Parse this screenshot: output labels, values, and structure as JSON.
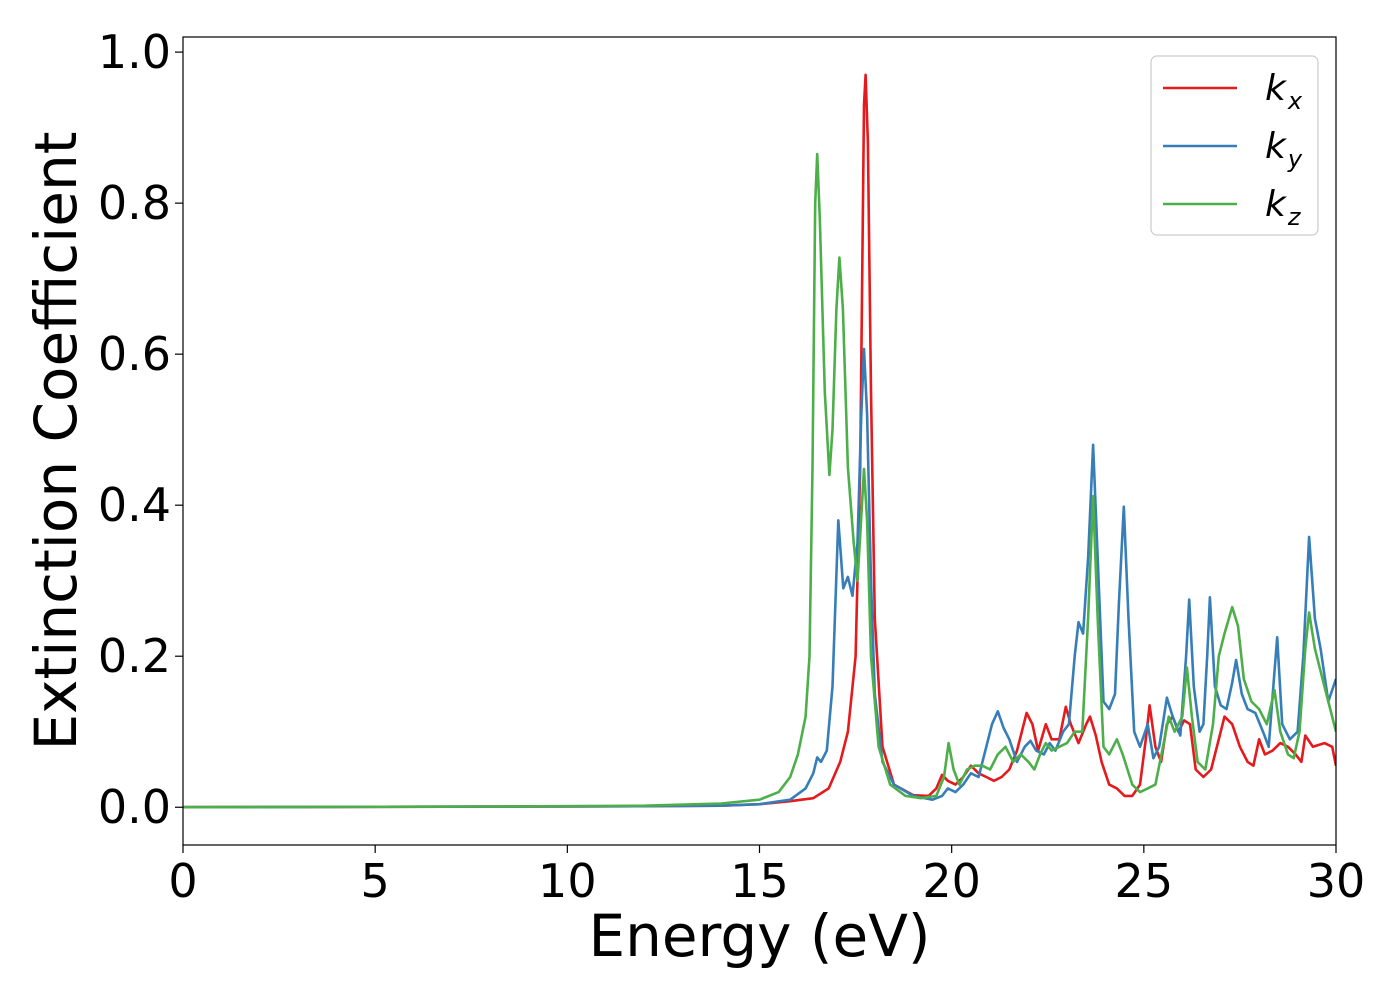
{
  "chart_data": {
    "type": "line",
    "title": "",
    "xlabel": "Energy (eV)",
    "ylabel": "Extinction Coefficient",
    "xlim": [
      0,
      30
    ],
    "ylim": [
      -0.05,
      1.02
    ],
    "xticks": [
      0,
      5,
      10,
      15,
      20,
      25,
      30
    ],
    "xtick_labels": [
      "0",
      "5",
      "10",
      "15",
      "20",
      "25",
      "30"
    ],
    "yticks": [
      0.0,
      0.2,
      0.4,
      0.6,
      0.8,
      1.0
    ],
    "ytick_labels": [
      "0.0",
      "0.2",
      "0.4",
      "0.6",
      "0.8",
      "1.0"
    ],
    "grid": false,
    "legend_position": "top-right",
    "series": [
      {
        "name": "k_x",
        "legend_base": "k",
        "legend_sub": "x",
        "color": "#e41a1c",
        "points": [
          [
            0,
            0
          ],
          [
            10,
            0.001
          ],
          [
            14,
            0.002
          ],
          [
            15,
            0.004
          ],
          [
            15.8,
            0.008
          ],
          [
            16.4,
            0.012
          ],
          [
            16.8,
            0.025
          ],
          [
            17.1,
            0.06
          ],
          [
            17.3,
            0.1
          ],
          [
            17.5,
            0.2
          ],
          [
            17.62,
            0.45
          ],
          [
            17.72,
            0.93
          ],
          [
            17.76,
            0.97
          ],
          [
            17.82,
            0.88
          ],
          [
            17.9,
            0.55
          ],
          [
            18.0,
            0.25
          ],
          [
            18.2,
            0.08
          ],
          [
            18.5,
            0.03
          ],
          [
            19.0,
            0.016
          ],
          [
            19.4,
            0.015
          ],
          [
            19.6,
            0.025
          ],
          [
            19.75,
            0.043
          ],
          [
            19.9,
            0.035
          ],
          [
            20.1,
            0.03
          ],
          [
            20.3,
            0.04
          ],
          [
            20.5,
            0.055
          ],
          [
            20.7,
            0.045
          ],
          [
            20.9,
            0.04
          ],
          [
            21.1,
            0.035
          ],
          [
            21.3,
            0.04
          ],
          [
            21.5,
            0.05
          ],
          [
            21.7,
            0.075
          ],
          [
            21.95,
            0.125
          ],
          [
            22.1,
            0.11
          ],
          [
            22.25,
            0.075
          ],
          [
            22.45,
            0.11
          ],
          [
            22.6,
            0.09
          ],
          [
            22.8,
            0.09
          ],
          [
            22.97,
            0.133
          ],
          [
            23.1,
            0.11
          ],
          [
            23.3,
            0.085
          ],
          [
            23.5,
            0.11
          ],
          [
            23.6,
            0.12
          ],
          [
            23.75,
            0.095
          ],
          [
            23.9,
            0.06
          ],
          [
            24.1,
            0.03
          ],
          [
            24.3,
            0.025
          ],
          [
            24.5,
            0.015
          ],
          [
            24.7,
            0.015
          ],
          [
            24.9,
            0.03
          ],
          [
            25.05,
            0.09
          ],
          [
            25.15,
            0.135
          ],
          [
            25.3,
            0.08
          ],
          [
            25.45,
            0.06
          ],
          [
            25.6,
            0.11
          ],
          [
            25.75,
            0.12
          ],
          [
            25.9,
            0.1
          ],
          [
            26.05,
            0.115
          ],
          [
            26.2,
            0.11
          ],
          [
            26.35,
            0.05
          ],
          [
            26.55,
            0.04
          ],
          [
            26.75,
            0.05
          ],
          [
            26.95,
            0.09
          ],
          [
            27.1,
            0.12
          ],
          [
            27.3,
            0.11
          ],
          [
            27.5,
            0.08
          ],
          [
            27.7,
            0.06
          ],
          [
            27.85,
            0.055
          ],
          [
            28.0,
            0.09
          ],
          [
            28.15,
            0.07
          ],
          [
            28.35,
            0.075
          ],
          [
            28.55,
            0.085
          ],
          [
            28.75,
            0.08
          ],
          [
            28.95,
            0.07
          ],
          [
            29.1,
            0.06
          ],
          [
            29.2,
            0.095
          ],
          [
            29.4,
            0.08
          ],
          [
            29.7,
            0.085
          ],
          [
            29.9,
            0.08
          ],
          [
            30.0,
            0.055
          ]
        ]
      },
      {
        "name": "k_y",
        "legend_base": "k",
        "legend_sub": "y",
        "color": "#377eb8",
        "points": [
          [
            0,
            0
          ],
          [
            10,
            0.001
          ],
          [
            14,
            0.002
          ],
          [
            15,
            0.004
          ],
          [
            15.8,
            0.01
          ],
          [
            16.2,
            0.025
          ],
          [
            16.4,
            0.045
          ],
          [
            16.5,
            0.066
          ],
          [
            16.6,
            0.06
          ],
          [
            16.75,
            0.075
          ],
          [
            16.9,
            0.16
          ],
          [
            17.05,
            0.38
          ],
          [
            17.18,
            0.29
          ],
          [
            17.3,
            0.305
          ],
          [
            17.42,
            0.28
          ],
          [
            17.55,
            0.35
          ],
          [
            17.65,
            0.52
          ],
          [
            17.72,
            0.607
          ],
          [
            17.8,
            0.52
          ],
          [
            17.9,
            0.3
          ],
          [
            18.0,
            0.15
          ],
          [
            18.2,
            0.06
          ],
          [
            18.5,
            0.03
          ],
          [
            19.0,
            0.015
          ],
          [
            19.5,
            0.01
          ],
          [
            19.75,
            0.015
          ],
          [
            19.9,
            0.025
          ],
          [
            20.1,
            0.02
          ],
          [
            20.3,
            0.03
          ],
          [
            20.5,
            0.045
          ],
          [
            20.7,
            0.04
          ],
          [
            20.9,
            0.08
          ],
          [
            21.05,
            0.11
          ],
          [
            21.2,
            0.127
          ],
          [
            21.35,
            0.105
          ],
          [
            21.5,
            0.09
          ],
          [
            21.7,
            0.06
          ],
          [
            21.9,
            0.08
          ],
          [
            22.05,
            0.088
          ],
          [
            22.2,
            0.075
          ],
          [
            22.4,
            0.07
          ],
          [
            22.55,
            0.085
          ],
          [
            22.7,
            0.075
          ],
          [
            22.9,
            0.1
          ],
          [
            23.05,
            0.11
          ],
          [
            23.2,
            0.2
          ],
          [
            23.3,
            0.245
          ],
          [
            23.42,
            0.23
          ],
          [
            23.55,
            0.33
          ],
          [
            23.68,
            0.48
          ],
          [
            23.8,
            0.33
          ],
          [
            23.95,
            0.14
          ],
          [
            24.1,
            0.13
          ],
          [
            24.25,
            0.15
          ],
          [
            24.35,
            0.27
          ],
          [
            24.48,
            0.398
          ],
          [
            24.6,
            0.25
          ],
          [
            24.75,
            0.1
          ],
          [
            24.9,
            0.08
          ],
          [
            25.1,
            0.11
          ],
          [
            25.25,
            0.065
          ],
          [
            25.4,
            0.08
          ],
          [
            25.6,
            0.145
          ],
          [
            25.75,
            0.12
          ],
          [
            25.95,
            0.095
          ],
          [
            26.1,
            0.2
          ],
          [
            26.18,
            0.275
          ],
          [
            26.3,
            0.16
          ],
          [
            26.45,
            0.1
          ],
          [
            26.55,
            0.11
          ],
          [
            26.65,
            0.2
          ],
          [
            26.72,
            0.278
          ],
          [
            26.85,
            0.16
          ],
          [
            27.0,
            0.135
          ],
          [
            27.15,
            0.13
          ],
          [
            27.3,
            0.165
          ],
          [
            27.4,
            0.195
          ],
          [
            27.55,
            0.15
          ],
          [
            27.7,
            0.13
          ],
          [
            27.9,
            0.125
          ],
          [
            28.1,
            0.1
          ],
          [
            28.25,
            0.08
          ],
          [
            28.4,
            0.18
          ],
          [
            28.47,
            0.225
          ],
          [
            28.6,
            0.11
          ],
          [
            28.8,
            0.09
          ],
          [
            29.0,
            0.1
          ],
          [
            29.15,
            0.2
          ],
          [
            29.3,
            0.358
          ],
          [
            29.45,
            0.25
          ],
          [
            29.6,
            0.21
          ],
          [
            29.8,
            0.14
          ],
          [
            30.0,
            0.17
          ]
        ]
      },
      {
        "name": "k_z",
        "legend_base": "k",
        "legend_sub": "z",
        "color": "#4daf4a",
        "points": [
          [
            0,
            0
          ],
          [
            8,
            0.001
          ],
          [
            12,
            0.002
          ],
          [
            14,
            0.005
          ],
          [
            15,
            0.01
          ],
          [
            15.5,
            0.02
          ],
          [
            15.8,
            0.04
          ],
          [
            16.0,
            0.07
          ],
          [
            16.2,
            0.12
          ],
          [
            16.3,
            0.2
          ],
          [
            16.38,
            0.45
          ],
          [
            16.45,
            0.8
          ],
          [
            16.5,
            0.865
          ],
          [
            16.57,
            0.78
          ],
          [
            16.7,
            0.55
          ],
          [
            16.82,
            0.44
          ],
          [
            16.9,
            0.5
          ],
          [
            17.0,
            0.66
          ],
          [
            17.08,
            0.728
          ],
          [
            17.17,
            0.66
          ],
          [
            17.3,
            0.45
          ],
          [
            17.45,
            0.35
          ],
          [
            17.55,
            0.3
          ],
          [
            17.62,
            0.36
          ],
          [
            17.72,
            0.448
          ],
          [
            17.8,
            0.38
          ],
          [
            17.9,
            0.2
          ],
          [
            18.1,
            0.08
          ],
          [
            18.4,
            0.03
          ],
          [
            18.8,
            0.015
          ],
          [
            19.2,
            0.012
          ],
          [
            19.6,
            0.015
          ],
          [
            19.8,
            0.04
          ],
          [
            19.92,
            0.085
          ],
          [
            20.05,
            0.05
          ],
          [
            20.2,
            0.03
          ],
          [
            20.4,
            0.05
          ],
          [
            20.6,
            0.055
          ],
          [
            20.8,
            0.055
          ],
          [
            21.0,
            0.05
          ],
          [
            21.2,
            0.07
          ],
          [
            21.4,
            0.08
          ],
          [
            21.6,
            0.06
          ],
          [
            21.8,
            0.07
          ],
          [
            22.0,
            0.06
          ],
          [
            22.15,
            0.05
          ],
          [
            22.3,
            0.07
          ],
          [
            22.45,
            0.085
          ],
          [
            22.6,
            0.075
          ],
          [
            22.8,
            0.08
          ],
          [
            23.0,
            0.085
          ],
          [
            23.2,
            0.1
          ],
          [
            23.4,
            0.1
          ],
          [
            23.55,
            0.25
          ],
          [
            23.68,
            0.412
          ],
          [
            23.8,
            0.25
          ],
          [
            23.95,
            0.08
          ],
          [
            24.1,
            0.07
          ],
          [
            24.3,
            0.09
          ],
          [
            24.45,
            0.07
          ],
          [
            24.7,
            0.03
          ],
          [
            24.9,
            0.02
          ],
          [
            25.1,
            0.025
          ],
          [
            25.3,
            0.03
          ],
          [
            25.5,
            0.08
          ],
          [
            25.65,
            0.12
          ],
          [
            25.8,
            0.1
          ],
          [
            26.0,
            0.12
          ],
          [
            26.12,
            0.185
          ],
          [
            26.25,
            0.12
          ],
          [
            26.4,
            0.06
          ],
          [
            26.6,
            0.05
          ],
          [
            26.8,
            0.11
          ],
          [
            26.95,
            0.2
          ],
          [
            27.1,
            0.23
          ],
          [
            27.3,
            0.265
          ],
          [
            27.45,
            0.24
          ],
          [
            27.6,
            0.17
          ],
          [
            27.8,
            0.14
          ],
          [
            28.0,
            0.13
          ],
          [
            28.2,
            0.11
          ],
          [
            28.4,
            0.155
          ],
          [
            28.55,
            0.1
          ],
          [
            28.75,
            0.07
          ],
          [
            28.9,
            0.065
          ],
          [
            29.05,
            0.1
          ],
          [
            29.2,
            0.21
          ],
          [
            29.3,
            0.258
          ],
          [
            29.45,
            0.21
          ],
          [
            29.6,
            0.18
          ],
          [
            29.8,
            0.14
          ],
          [
            30.0,
            0.1
          ]
        ]
      }
    ]
  }
}
